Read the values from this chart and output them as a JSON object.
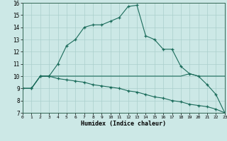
{
  "xlabel": "Humidex (Indice chaleur)",
  "xlim": [
    0,
    23
  ],
  "ylim": [
    7,
    16
  ],
  "xticks": [
    0,
    1,
    2,
    3,
    4,
    5,
    6,
    7,
    8,
    9,
    10,
    11,
    12,
    13,
    14,
    15,
    16,
    17,
    18,
    19,
    20,
    21,
    22,
    23
  ],
  "yticks": [
    7,
    8,
    9,
    10,
    11,
    12,
    13,
    14,
    15,
    16
  ],
  "bg_color": "#cce8e6",
  "grid_color": "#aacfcc",
  "line_color": "#1a6b5a",
  "line1_x": [
    0,
    1,
    2,
    3,
    4,
    5,
    6,
    7,
    8,
    9,
    10,
    11,
    12,
    13,
    14,
    15,
    16,
    17,
    18,
    19,
    20,
    21,
    22,
    23
  ],
  "line1_y": [
    9,
    9,
    10,
    10,
    11,
    12.5,
    13,
    14,
    14.2,
    14.2,
    14.5,
    14.8,
    15.7,
    15.8,
    13.3,
    13.0,
    12.2,
    12.2,
    10.8,
    10.2,
    10,
    9.3,
    8.5,
    7
  ],
  "line2_x": [
    0,
    1,
    2,
    3,
    4,
    5,
    6,
    7,
    8,
    9,
    10,
    11,
    12,
    13,
    14,
    15,
    16,
    17,
    18,
    19,
    20,
    21,
    22,
    23
  ],
  "line2_y": [
    9,
    9,
    10,
    10,
    10,
    10,
    10,
    10,
    10,
    10,
    10,
    10,
    10,
    10,
    10,
    10,
    10,
    10,
    10,
    10.2,
    10,
    10,
    10,
    10
  ],
  "line3_x": [
    0,
    1,
    2,
    3,
    4,
    5,
    6,
    7,
    8,
    9,
    10,
    11,
    12,
    13,
    14,
    15,
    16,
    17,
    18,
    19,
    20,
    21,
    22,
    23
  ],
  "line3_y": [
    9,
    9,
    10,
    10,
    9.8,
    9.7,
    9.6,
    9.5,
    9.3,
    9.2,
    9.1,
    9.0,
    8.8,
    8.7,
    8.5,
    8.3,
    8.2,
    8.0,
    7.9,
    7.7,
    7.6,
    7.5,
    7.3,
    7.0
  ]
}
